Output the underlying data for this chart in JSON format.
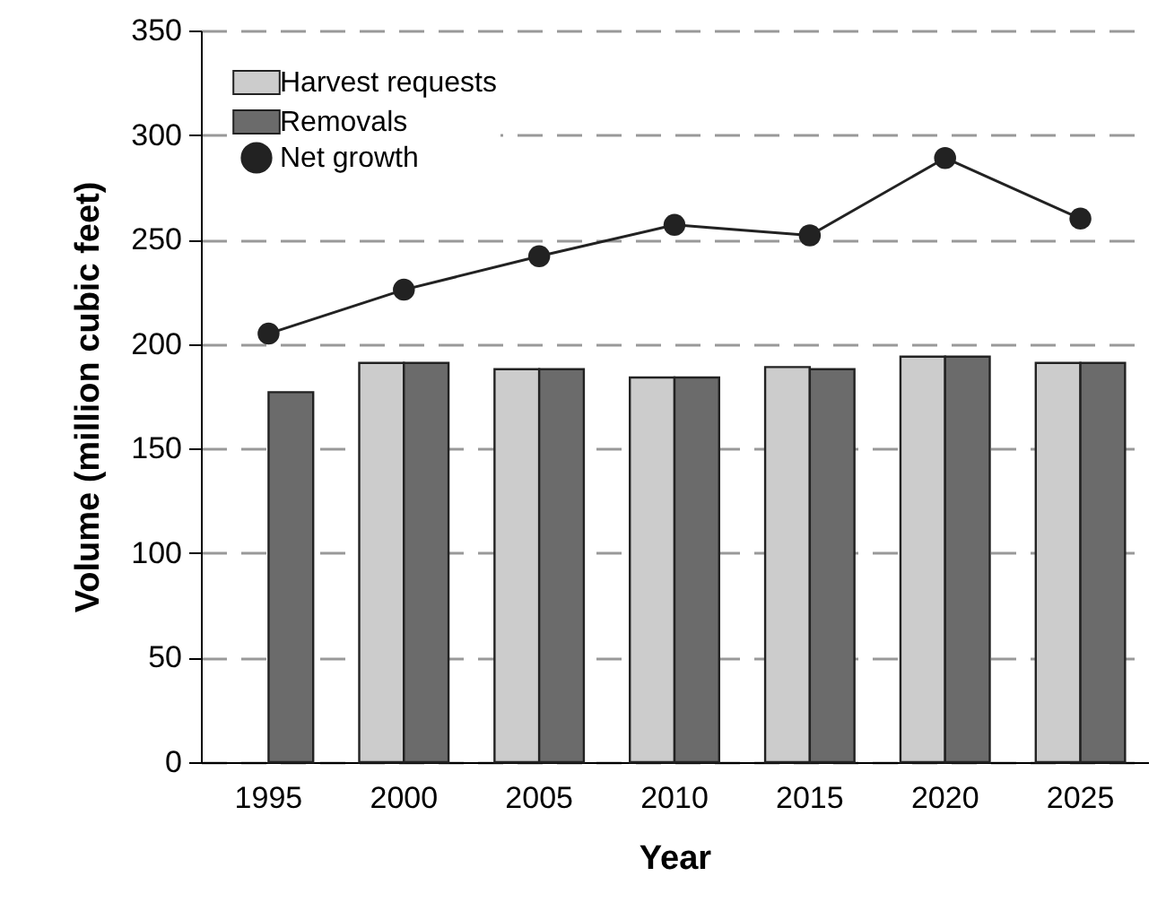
{
  "chart_data": {
    "type": "bar",
    "xlabel": "Year",
    "ylabel": "Volume (million cubic feet)",
    "categories": [
      "1995",
      "2000",
      "2005",
      "2010",
      "2015",
      "2020",
      "2025"
    ],
    "series": [
      {
        "name": "Harvest requests",
        "color": "#cccccc",
        "values": [
          null,
          191,
          188,
          184,
          189,
          194,
          191
        ]
      },
      {
        "name": "Removals",
        "color": "#6b6b6b",
        "values": [
          177,
          191,
          188,
          184,
          188,
          194,
          191
        ]
      },
      {
        "name": "Net growth",
        "type": "line",
        "color": "#222222",
        "values": [
          205,
          226,
          242,
          257,
          252,
          289,
          260
        ]
      }
    ],
    "ylim": [
      0,
      350
    ],
    "yticks": [
      0,
      50,
      100,
      150,
      200,
      250,
      300,
      350
    ],
    "grid": "y",
    "legend": "top left",
    "marker": "circle",
    "line_style": "solid"
  }
}
